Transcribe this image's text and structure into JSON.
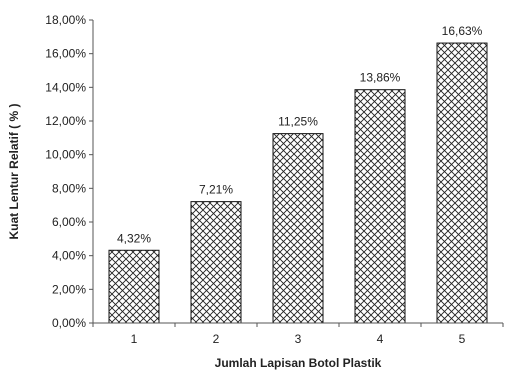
{
  "chart_data": {
    "type": "bar",
    "categories": [
      "1",
      "2",
      "3",
      "4",
      "5"
    ],
    "values": [
      4.32,
      7.21,
      11.25,
      13.86,
      16.63
    ],
    "data_labels": [
      "4,32%",
      "7,21%",
      "11,25%",
      "13,86%",
      "16,63%"
    ],
    "title": "",
    "xlabel": "Jumlah Lapisan Botol Plastik",
    "ylabel": "Kuat Lentur Relatif ( % )",
    "ylim": [
      0,
      18
    ],
    "yticks": [
      0,
      2,
      4,
      6,
      8,
      10,
      12,
      14,
      16,
      18
    ],
    "ytick_labels": [
      "0,00%",
      "2,00%",
      "4,00%",
      "6,00%",
      "8,00%",
      "10,00%",
      "12,00%",
      "14,00%",
      "16,00%",
      "18,00%"
    ],
    "grid": false,
    "legend": "none",
    "bar_fill": "crosshatch",
    "bar_stroke": "#111111",
    "hatch_color": "#222222"
  }
}
